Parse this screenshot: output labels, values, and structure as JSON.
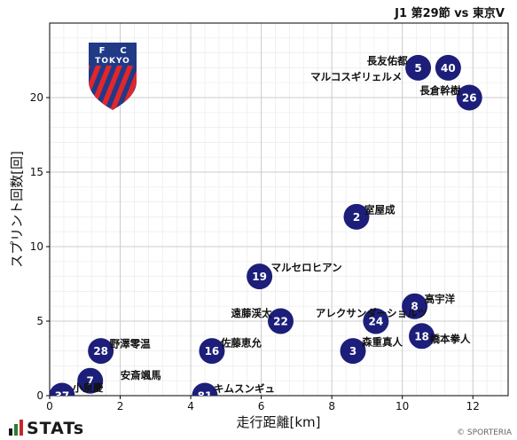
{
  "header": {
    "match_title": "J1 第29節 vs 東京V"
  },
  "footer": {
    "brand": "STATs",
    "credit": "© SPORTERIA"
  },
  "colors": {
    "point_fill": "#1c1e7a",
    "point_text": "#ffffff",
    "grid": "#cccccc",
    "grid_minor": "#ebebeb",
    "crest_blue": "#213a86",
    "crest_red": "#e3262c"
  },
  "logo": {
    "text_f": "F",
    "text_c": "C",
    "text_tokyo": "TOKYO"
  },
  "chart_data": {
    "type": "scatter",
    "title": "",
    "xlabel": "走行距離[km]",
    "ylabel": "スプリント回数[回]",
    "xlim": [
      0,
      13
    ],
    "ylim": [
      0,
      25
    ],
    "xticks": [
      0,
      2,
      4,
      6,
      8,
      10,
      12
    ],
    "yticks": [
      0,
      5,
      10,
      15,
      20
    ],
    "grid": true,
    "points": [
      {
        "number": "5",
        "name": "長友佑都",
        "x": 10.45,
        "y": 22
      },
      {
        "number": "40",
        "name": "マルコスギリェルメ",
        "x": 11.3,
        "y": 22
      },
      {
        "number": "26",
        "name": "長倉幹樹",
        "x": 11.9,
        "y": 20
      },
      {
        "number": "2",
        "name": "室屋成",
        "x": 8.7,
        "y": 12
      },
      {
        "number": "19",
        "name": "マルセロヒアン",
        "x": 5.95,
        "y": 8
      },
      {
        "number": "8",
        "name": "高宇洋",
        "x": 10.35,
        "y": 6
      },
      {
        "number": "22",
        "name": "遠藤渓太",
        "x": 6.55,
        "y": 5
      },
      {
        "number": "24",
        "name": "アレクサンダーショルツ",
        "x": 9.25,
        "y": 5
      },
      {
        "number": "18",
        "name": "橋本拳人",
        "x": 10.55,
        "y": 4
      },
      {
        "number": "28",
        "name": "野澤零温",
        "x": 1.45,
        "y": 3
      },
      {
        "number": "16",
        "name": "佐藤恵允",
        "x": 4.6,
        "y": 3
      },
      {
        "number": "3",
        "name": "森重真人",
        "x": 8.6,
        "y": 3
      },
      {
        "number": "7",
        "name": "安斎颯馬",
        "x": 1.15,
        "y": 1
      },
      {
        "number": "37",
        "name": "小泉慶",
        "x": 0.35,
        "y": 0
      },
      {
        "number": "81",
        "name": "キムスンギュ",
        "x": 4.4,
        "y": 0
      }
    ]
  }
}
